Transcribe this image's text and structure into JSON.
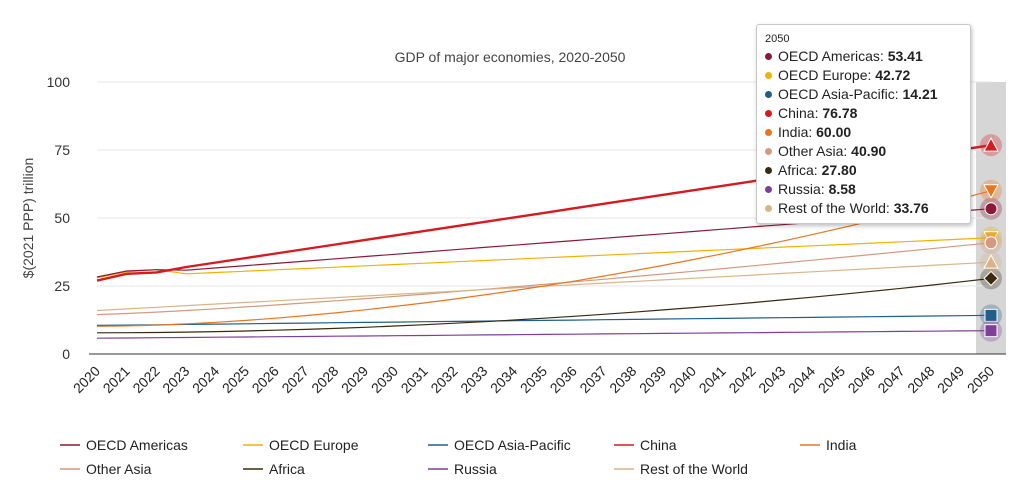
{
  "chart_data": {
    "type": "line",
    "title": "GDP of major economies, 2020-2050",
    "xlabel": "",
    "ylabel": "$(2021 PPP) trillion",
    "ylim": [
      0,
      100
    ],
    "yticks": [
      0,
      25,
      50,
      75,
      100
    ],
    "highlight_year": "2050",
    "x": [
      "2020",
      "2021",
      "2022",
      "2023",
      "2024",
      "2025",
      "2026",
      "2027",
      "2028",
      "2029",
      "2030",
      "2031",
      "2032",
      "2033",
      "2034",
      "2035",
      "2036",
      "2037",
      "2038",
      "2039",
      "2040",
      "2041",
      "2042",
      "2043",
      "2044",
      "2045",
      "2046",
      "2047",
      "2048",
      "2049",
      "2050"
    ],
    "series": [
      {
        "name": "OECD Americas",
        "color": "#8b1a3a",
        "marker": "circle",
        "highlight_value": "53.41",
        "start": 28.3,
        "end": 53.41,
        "exp": 1.0
      },
      {
        "name": "OECD Europe",
        "color": "#f2b100",
        "marker": "triangle-down",
        "highlight_value": "42.72",
        "start": 28.0,
        "end": 42.72,
        "exp": 1.0
      },
      {
        "name": "OECD Asia-Pacific",
        "color": "#1f5f8b",
        "marker": "square",
        "highlight_value": "14.21",
        "start": 10.5,
        "end": 14.21,
        "exp": 1.0
      },
      {
        "name": "China",
        "color": "#d71920",
        "marker": "triangle",
        "highlight_value": "76.78",
        "start": 27.0,
        "end": 76.78,
        "exp": 1.0
      },
      {
        "name": "India",
        "color": "#e8761f",
        "marker": "triangle-down",
        "highlight_value": "60.00",
        "start": 10.2,
        "end": 60.0,
        "exp": 1.75
      },
      {
        "name": "Other Asia",
        "color": "#d49a7f",
        "marker": "circle",
        "highlight_value": "40.90",
        "start": 14.5,
        "end": 40.9,
        "exp": 1.25
      },
      {
        "name": "Africa",
        "color": "#3b2a10",
        "marker": "diamond",
        "highlight_value": "27.80",
        "start": 7.8,
        "end": 27.8,
        "exp": 1.9
      },
      {
        "name": "Russia",
        "color": "#7d3f98",
        "marker": "square",
        "highlight_value": "8.58",
        "start": 5.8,
        "end": 8.58,
        "exp": 1.0
      },
      {
        "name": "Rest of the World",
        "color": "#d9b48a",
        "marker": "triangle",
        "highlight_value": "33.76",
        "start": 16.0,
        "end": 33.76,
        "exp": 1.0
      }
    ]
  },
  "tooltip": {
    "title": "2050"
  }
}
